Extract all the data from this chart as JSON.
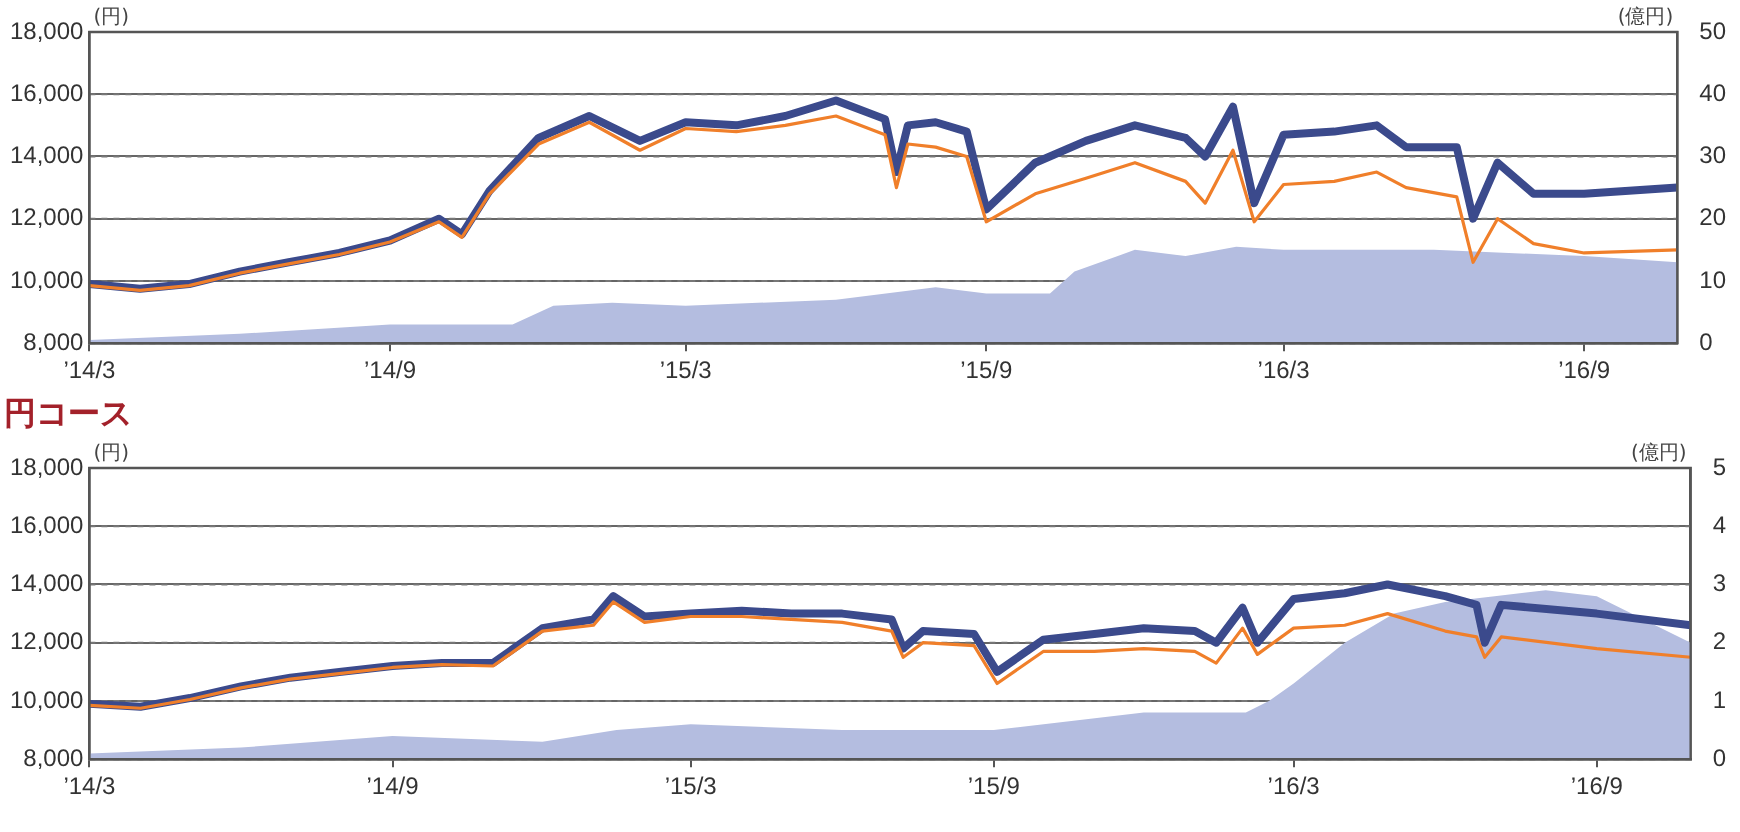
{
  "chart_data": [
    {
      "type": "line",
      "ylabel": "(円)",
      "y2label": "(億円)",
      "grid": "y",
      "marker": "none",
      "line_style": "solid",
      "xlim": [
        "2014-03-01",
        "2016-10-28"
      ],
      "xticks": [
        {
          "value": "2014-03-01",
          "label": "’14/3"
        },
        {
          "value": "2014-09-01",
          "label": "’14/9"
        },
        {
          "value": "2015-03-01",
          "label": "’15/3"
        },
        {
          "value": "2015-09-01",
          "label": "’15/9"
        },
        {
          "value": "2016-03-01",
          "label": "’16/3"
        },
        {
          "value": "2016-09-01",
          "label": "’16/9"
        }
      ],
      "ylim": [
        8000,
        18000
      ],
      "yticks": [
        {
          "value": 8000,
          "label": "8,000"
        },
        {
          "value": 10000,
          "label": "10,000"
        },
        {
          "value": 12000,
          "label": "12,000"
        },
        {
          "value": 14000,
          "label": "14,000"
        },
        {
          "value": 16000,
          "label": "16,000"
        },
        {
          "value": 18000,
          "label": "18,000"
        }
      ],
      "y2lim": [
        0,
        50
      ],
      "y2ticks": [
        0,
        10,
        20,
        30,
        40,
        50
      ],
      "x": [
        "2014-03-01",
        "2014-04-01",
        "2014-05-01",
        "2014-06-01",
        "2014-07-01",
        "2014-08-01",
        "2014-09-01",
        "2014-10-01",
        "2014-10-15",
        "2014-11-01",
        "2014-12-01",
        "2015-01-01",
        "2015-02-01",
        "2015-03-01",
        "2015-04-01",
        "2015-05-01",
        "2015-06-01",
        "2015-07-01",
        "2015-07-08",
        "2015-07-15",
        "2015-08-01",
        "2015-08-20",
        "2015-09-01",
        "2015-10-01",
        "2015-11-01",
        "2015-12-01",
        "2016-01-01",
        "2016-01-13",
        "2016-01-30",
        "2016-02-12",
        "2016-03-01",
        "2016-04-01",
        "2016-04-27",
        "2016-05-15",
        "2016-06-15",
        "2016-06-25",
        "2016-07-10",
        "2016-08-01",
        "2016-09-01",
        "2016-10-28"
      ],
      "series": [
        {
          "type": "area",
          "axis": "y2",
          "color": "#b4bde0",
          "x": [
            "2014-03-01",
            "2014-06-01",
            "2014-09-01",
            "2014-11-15",
            "2014-12-10",
            "2015-01-15",
            "2015-03-01",
            "2015-06-01",
            "2015-08-01",
            "2015-09-01",
            "2015-10-10",
            "2015-10-25",
            "2015-12-01",
            "2016-01-01",
            "2016-02-01",
            "2016-03-01",
            "2016-06-01",
            "2016-09-01",
            "2016-10-28"
          ],
          "values": [
            0.5,
            1.5,
            3,
            3,
            6,
            6.5,
            6,
            7,
            9,
            8,
            8,
            11.5,
            15,
            14,
            15.5,
            15,
            15,
            14,
            13
          ]
        },
        {
          "type": "line",
          "color": "#3b4a8c",
          "values": [
            9900,
            9750,
            9900,
            10300,
            10600,
            10900,
            11300,
            12000,
            11500,
            12900,
            14600,
            15300,
            14500,
            15100,
            15000,
            15300,
            15800,
            15200,
            13500,
            15000,
            15100,
            14800,
            12300,
            13800,
            14500,
            15000,
            14600,
            14000,
            15600,
            12500,
            14700,
            14800,
            15000,
            14300,
            14300,
            12000,
            13800,
            12800,
            12800,
            13000
          ]
        },
        {
          "type": "line",
          "color": "#f07f2a",
          "values": [
            9850,
            9700,
            9850,
            10250,
            10550,
            10850,
            11250,
            11900,
            11400,
            12800,
            14400,
            15100,
            14200,
            14900,
            14800,
            15000,
            15300,
            14700,
            13000,
            14400,
            14300,
            14000,
            11900,
            12800,
            13300,
            13800,
            13200,
            12500,
            14200,
            11900,
            13100,
            13200,
            13500,
            13000,
            12700,
            10600,
            12000,
            11200,
            10900,
            11000
          ]
        }
      ]
    },
    {
      "type": "line",
      "title": "円コース",
      "ylabel": "(円)",
      "y2label": "(億円)",
      "grid": "y",
      "marker": "none",
      "line_style": "solid",
      "xlim": [
        "2014-03-01",
        "2016-10-28"
      ],
      "xticks": [
        {
          "value": "2014-03-01",
          "label": "’14/3"
        },
        {
          "value": "2014-09-01",
          "label": "’14/9"
        },
        {
          "value": "2015-03-01",
          "label": "’15/3"
        },
        {
          "value": "2015-09-01",
          "label": "’15/9"
        },
        {
          "value": "2016-03-01",
          "label": "’16/3"
        },
        {
          "value": "2016-09-01",
          "label": "’16/9"
        }
      ],
      "ylim": [
        8000,
        18000
      ],
      "yticks": [
        {
          "value": 8000,
          "label": "8,000"
        },
        {
          "value": 10000,
          "label": "10,000"
        },
        {
          "value": 12000,
          "label": "12,000"
        },
        {
          "value": 14000,
          "label": "14,000"
        },
        {
          "value": 16000,
          "label": "16,000"
        },
        {
          "value": 18000,
          "label": "18,000"
        }
      ],
      "y2lim": [
        0,
        5
      ],
      "y2ticks": [
        0,
        1,
        2,
        3,
        4,
        5
      ],
      "x": [
        "2014-03-01",
        "2014-04-01",
        "2014-05-01",
        "2014-06-01",
        "2014-07-01",
        "2014-08-01",
        "2014-09-01",
        "2014-10-01",
        "2014-11-01",
        "2014-12-01",
        "2015-01-01",
        "2015-01-13",
        "2015-02-01",
        "2015-03-01",
        "2015-04-01",
        "2015-05-01",
        "2015-06-01",
        "2015-07-01",
        "2015-07-08",
        "2015-07-20",
        "2015-08-20",
        "2015-09-03",
        "2015-10-01",
        "2015-11-01",
        "2015-12-01",
        "2016-01-01",
        "2016-01-14",
        "2016-01-30",
        "2016-02-08",
        "2016-03-01",
        "2016-04-01",
        "2016-04-27",
        "2016-06-01",
        "2016-06-20",
        "2016-06-25",
        "2016-07-05",
        "2016-09-01",
        "2016-10-28"
      ],
      "series": [
        {
          "type": "area",
          "axis": "y2",
          "color": "#b4bde0",
          "x": [
            "2014-03-01",
            "2014-06-01",
            "2014-09-01",
            "2014-12-01",
            "2015-01-15",
            "2015-03-01",
            "2015-06-01",
            "2015-09-01",
            "2015-12-01",
            "2016-02-01",
            "2016-02-15",
            "2016-03-01",
            "2016-04-01",
            "2016-05-01",
            "2016-06-01",
            "2016-07-01",
            "2016-08-01",
            "2016-09-01",
            "2016-10-28"
          ],
          "values": [
            0.1,
            0.2,
            0.4,
            0.3,
            0.5,
            0.6,
            0.5,
            0.5,
            0.8,
            0.8,
            1.0,
            1.3,
            2.0,
            2.5,
            2.7,
            2.8,
            2.9,
            2.8,
            2.0
          ]
        },
        {
          "type": "line",
          "color": "#3b4a8c",
          "values": [
            9900,
            9800,
            10100,
            10500,
            10800,
            11000,
            11200,
            11300,
            11300,
            12500,
            12800,
            13600,
            12900,
            13000,
            13100,
            13000,
            13000,
            12800,
            11800,
            12400,
            12300,
            11000,
            12100,
            12300,
            12500,
            12400,
            12000,
            13200,
            12000,
            13500,
            13700,
            14000,
            13600,
            13300,
            12000,
            13300,
            13000,
            12600
          ]
        },
        {
          "type": "line",
          "color": "#f07f2a",
          "values": [
            9850,
            9750,
            10050,
            10450,
            10750,
            10950,
            11150,
            11250,
            11200,
            12400,
            12600,
            13400,
            12700,
            12900,
            12900,
            12800,
            12700,
            12400,
            11500,
            12000,
            11900,
            10600,
            11700,
            11700,
            11800,
            11700,
            11300,
            12500,
            11600,
            12500,
            12600,
            13000,
            12400,
            12200,
            11500,
            12200,
            11800,
            11500
          ]
        }
      ]
    }
  ]
}
